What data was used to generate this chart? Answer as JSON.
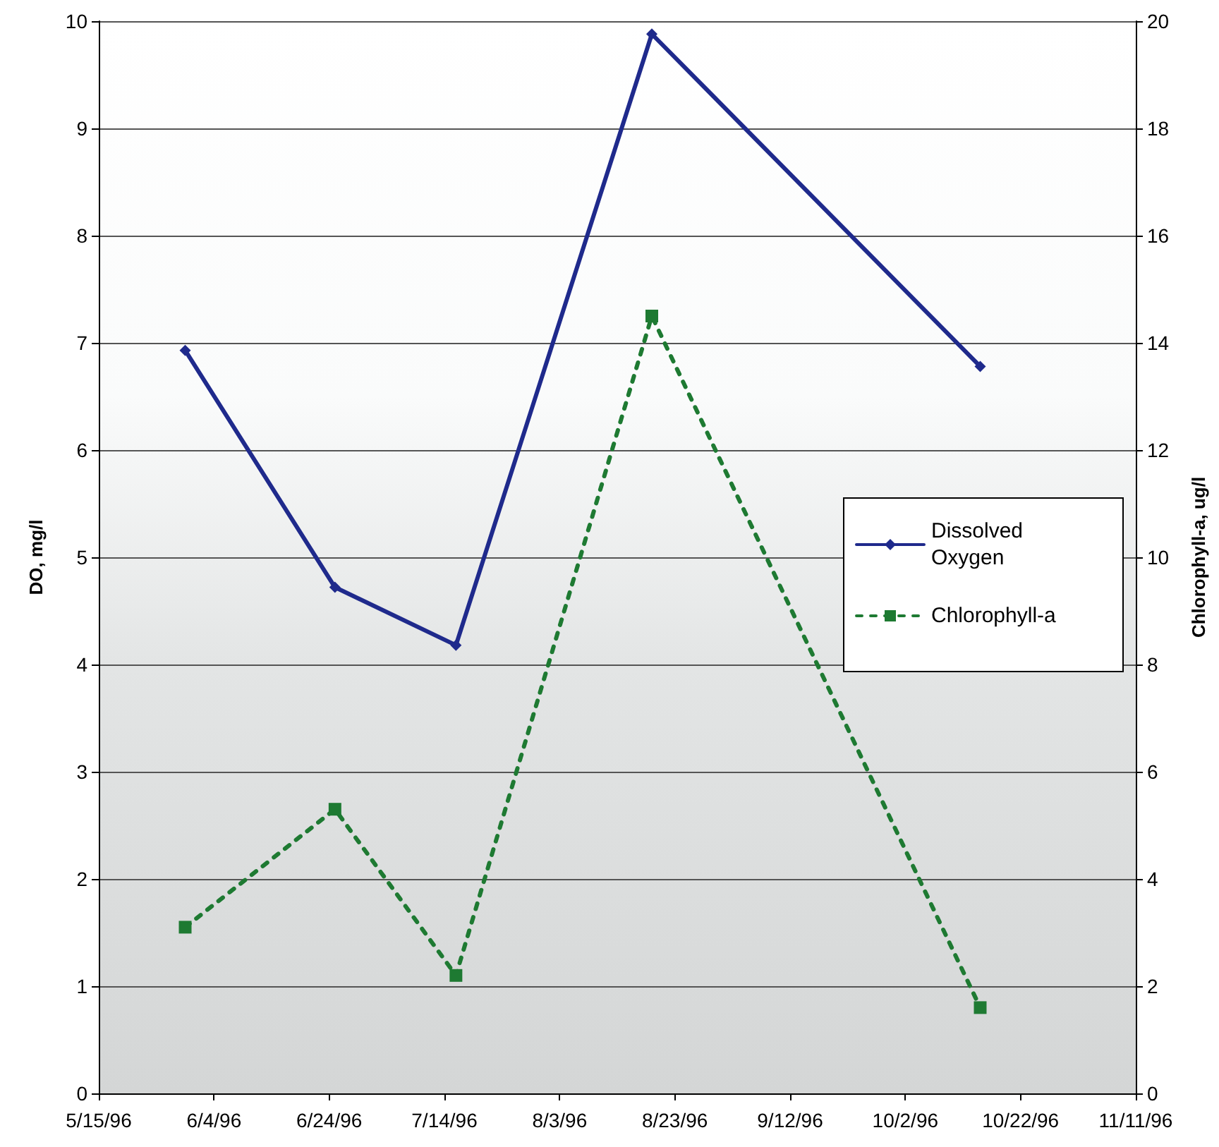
{
  "chart_data": {
    "type": "line",
    "ylabel": "DO, mg/l",
    "y2label": "Chlorophyll-a, ug/l",
    "x": [
      "1996-05-30",
      "1996-06-25",
      "1996-07-16",
      "1996-08-19",
      "1996-10-15"
    ],
    "series": [
      {
        "name": "Dissolved Oxygen",
        "color": "#1f2a8c",
        "marker": "diamond",
        "line_style": "solid",
        "values": [
          6.93,
          4.72,
          4.18,
          9.88,
          6.78
        ]
      },
      {
        "name": "Chlorophyll-a",
        "color": "#1e7a32",
        "marker": "square",
        "line_style": "dashed",
        "axis": "y2",
        "values": [
          3.1,
          5.3,
          2.2,
          14.5,
          1.6
        ]
      }
    ],
    "xlim": [
      "1996-05-15",
      "1996-11-11"
    ],
    "xticks": [
      {
        "value": "1996-05-15",
        "label": "5/15/96"
      },
      {
        "value": "1996-06-04",
        "label": "6/4/96"
      },
      {
        "value": "1996-06-24",
        "label": "6/24/96"
      },
      {
        "value": "1996-07-14",
        "label": "7/14/96"
      },
      {
        "value": "1996-08-03",
        "label": "8/3/96"
      },
      {
        "value": "1996-08-23",
        "label": "8/23/96"
      },
      {
        "value": "1996-09-12",
        "label": "9/12/96"
      },
      {
        "value": "1996-10-02",
        "label": "10/2/96"
      },
      {
        "value": "1996-10-22",
        "label": "10/22/96"
      },
      {
        "value": "1996-11-11",
        "label": "11/11/96"
      }
    ],
    "ylim": [
      0,
      10
    ],
    "yticks": [
      0,
      1,
      2,
      3,
      4,
      5,
      6,
      7,
      8,
      9,
      10
    ],
    "y2lim": [
      0,
      20
    ],
    "y2ticks": [
      0,
      2,
      4,
      6,
      8,
      10,
      12,
      14,
      16,
      18,
      20
    ],
    "grid": "y",
    "legend": "right"
  }
}
